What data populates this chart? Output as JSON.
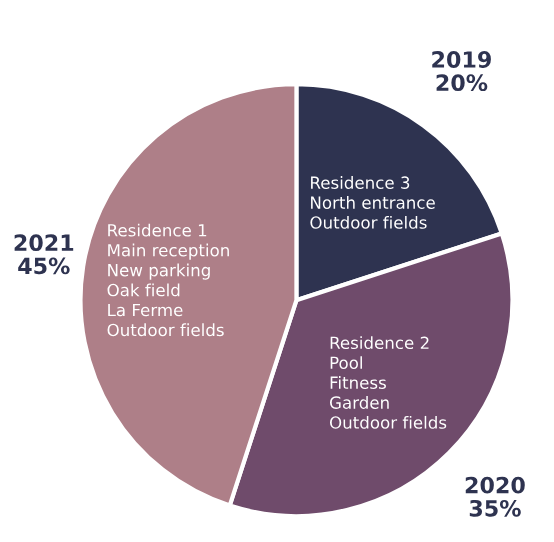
{
  "chart_data": {
    "type": "pie",
    "categories": [
      "2019",
      "2020",
      "2021"
    ],
    "values": [
      20,
      35,
      45
    ],
    "colors": [
      "#2e3350",
      "#6f4b6b",
      "#ae7f88"
    ],
    "value_labels": [
      "20%",
      "35%",
      "45%"
    ],
    "annotations": [
      "Residence 3\nNorth entrance\nOutdoor fields",
      "Residence 2\nPool\nFitness\nGarden\nOutdoor fields",
      "Residence 1\nMain reception\nNew parking\nOak field\nLa Ferme\nOutdoor fields"
    ],
    "legend": false
  }
}
